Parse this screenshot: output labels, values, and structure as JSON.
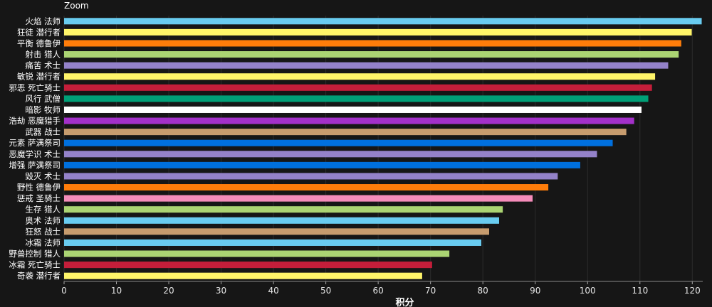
{
  "zoom_label": "Zoom",
  "chart_data": {
    "type": "bar",
    "orientation": "horizontal",
    "xlabel": "积分",
    "ylabel": "",
    "xlim": [
      0,
      122
    ],
    "xticks": [
      0,
      10,
      20,
      30,
      40,
      50,
      60,
      70,
      80,
      90,
      100,
      110,
      120
    ],
    "grid": true,
    "categories": [
      "火焰 法师",
      "狂徒 潜行者",
      "平衡 德鲁伊",
      "射击 猎人",
      "痛苦 术士",
      "敏锐 潜行者",
      "邪恶 死亡骑士",
      "风行 武僧",
      "暗影 牧师",
      "浩劫 恶魔猎手",
      "武器 战士",
      "元素 萨满祭司",
      "恶魔学识 术士",
      "增强 萨满祭司",
      "毁灭 术士",
      "野性 德鲁伊",
      "惩戒 圣骑士",
      "生存 猎人",
      "奥术 法师",
      "狂怒 战士",
      "冰霜 法师",
      "野兽控制 猎人",
      "冰霜 死亡骑士",
      "奇袭 潜行者"
    ],
    "values": [
      121.8,
      119.9,
      117.9,
      117.4,
      115.4,
      112.9,
      112.3,
      111.6,
      110.3,
      108.9,
      107.4,
      104.8,
      101.8,
      98.6,
      94.3,
      92.5,
      89.5,
      83.8,
      83.1,
      81.2,
      79.7,
      73.6,
      70.3,
      68.4
    ],
    "colors": [
      "#69ccf0",
      "#fff569",
      "#ff7d0a",
      "#abd473",
      "#9482c9",
      "#fff569",
      "#c41e3a",
      "#00a077",
      "#ffffff",
      "#a330c9",
      "#c79c6e",
      "#0070de",
      "#9482c9",
      "#0070de",
      "#9482c9",
      "#ff7d0a",
      "#f58cba",
      "#abd473",
      "#69ccf0",
      "#c79c6e",
      "#69ccf0",
      "#abd473",
      "#c41e3a",
      "#fff569"
    ]
  }
}
